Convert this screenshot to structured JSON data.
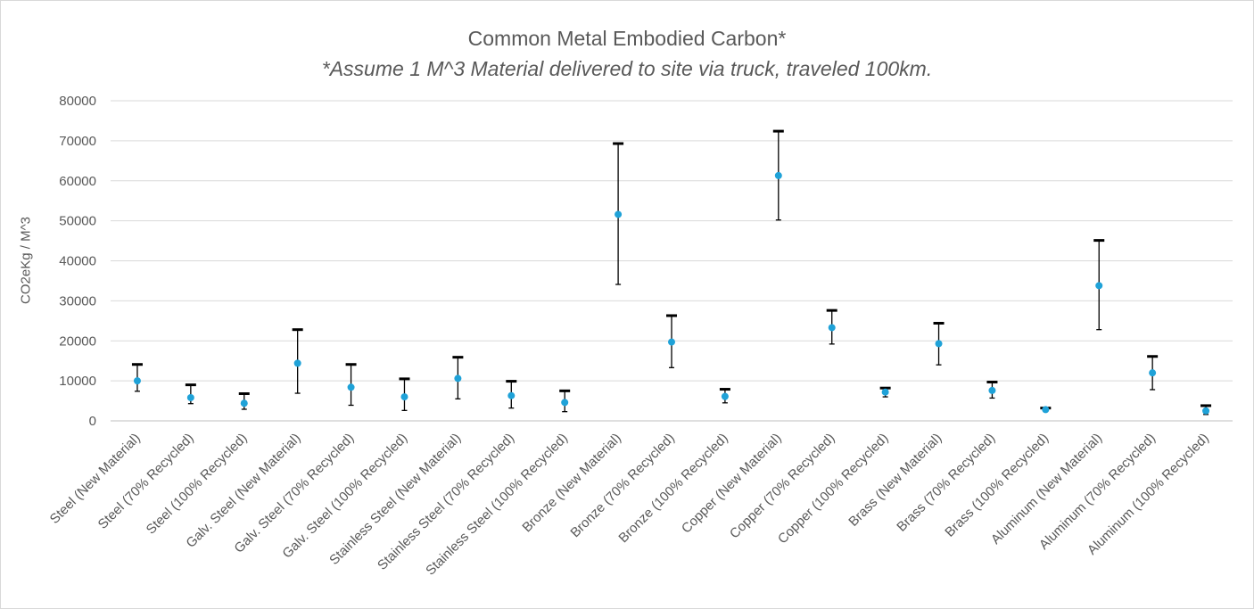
{
  "chart_data": {
    "type": "scatter",
    "title": "Common Metal Embodied Carbon*",
    "subtitle": "*Assume 1 M^3 Material delivered to site via truck, traveled 100km.",
    "xlabel": "",
    "ylabel": "CO2eKg / M^3",
    "ylim": [
      0,
      80000
    ],
    "yticks": [
      0,
      10000,
      20000,
      30000,
      40000,
      50000,
      60000,
      70000,
      80000
    ],
    "grid": true,
    "legend": "none",
    "marker_color": "#1fa2d8",
    "errorbar_color": "#000000",
    "categories": [
      "Steel (New Material)",
      "Steel (70% Recycled)",
      "Steel (100% Recycled)",
      "Galv. Steel (New Material)",
      "Galv. Steel (70% Recycled)",
      "Galv. Steel (100% Recycled)",
      "Stainless Steel (New Material)",
      "Stainless Steel (70% Recycled)",
      "Stainless Steel (100% Recycled)",
      "Bronze (New Material)",
      "Bronze (70% Recycled)",
      "Bronze (100% Recycled)",
      "Copper (New Material)",
      "Copper (70% Recycled)",
      "Copper (100% Recycled)",
      "Brass (New Material)",
      "Brass (70% Recycled)",
      "Brass (100% Recycled)",
      "Aluminum (New Material)",
      "Aluminum (70% Recycled)",
      "Aluminum (100% Recycled)"
    ],
    "values": [
      10000,
      5800,
      4400,
      14400,
      8400,
      6000,
      10600,
      6300,
      4600,
      51600,
      19700,
      6100,
      61300,
      23300,
      7200,
      19300,
      7600,
      2800,
      33800,
      12000,
      2500
    ],
    "low": [
      7400,
      4300,
      2900,
      6900,
      3900,
      2600,
      5500,
      3200,
      2300,
      34100,
      13300,
      4500,
      50200,
      19200,
      6000,
      14000,
      5700,
      2500,
      22800,
      7800,
      1600
    ],
    "high": [
      14100,
      9000,
      6800,
      22800,
      14100,
      10500,
      15900,
      9900,
      7500,
      69300,
      26300,
      7900,
      72400,
      27600,
      8200,
      24400,
      9700,
      3200,
      45100,
      16100,
      3800
    ]
  }
}
